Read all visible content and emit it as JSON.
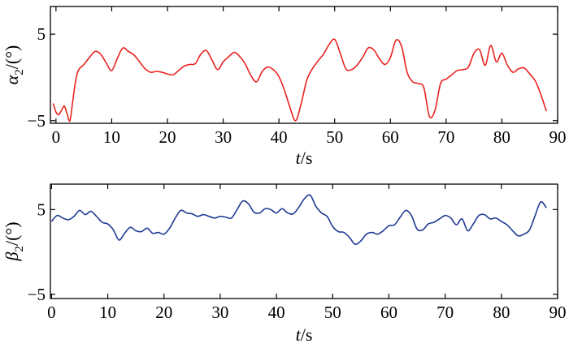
{
  "chart_data": [
    {
      "type": "line",
      "title": "",
      "xlabel": {
        "var": "t",
        "unit": "/s"
      },
      "ylabel": {
        "var": "α",
        "sub": "2",
        "unit": "/(°)"
      },
      "xlim": [
        -1,
        90
      ],
      "ylim": [
        -5.3,
        8.2
      ],
      "x_ticks": [
        0,
        10,
        20,
        30,
        40,
        50,
        60,
        70,
        80,
        90
      ],
      "y_ticks": [
        5,
        -5
      ],
      "x_tick_labels": [
        "0",
        "10",
        "20",
        "30",
        "40",
        "50",
        "60",
        "70",
        "80",
        "90"
      ],
      "y_tick_labels": [
        "5",
        "−5"
      ],
      "grid": false,
      "series": [
        {
          "color": "#e8231f",
          "x": [
            -0.5,
            0,
            0.5,
            1,
            1.5,
            2,
            2.5,
            3,
            3.5,
            4,
            5,
            6,
            7,
            8,
            9,
            10,
            11,
            12,
            13,
            14,
            15,
            16,
            17,
            18,
            19,
            20,
            21,
            22,
            23,
            24,
            25,
            26,
            27,
            28,
            29,
            30,
            31,
            32,
            33,
            34,
            35,
            36,
            37,
            38,
            39,
            40,
            41,
            42,
            43,
            44,
            45,
            46,
            47,
            48,
            49,
            50,
            51,
            52,
            53,
            54,
            55,
            56,
            57,
            58,
            59,
            60,
            61,
            62,
            63,
            64,
            65,
            66,
            67,
            68,
            69,
            70,
            71,
            72,
            73,
            74,
            75,
            76,
            77,
            78,
            79,
            80,
            81,
            82,
            83,
            84,
            85,
            86,
            87,
            88
          ],
          "y": [
            -3.0,
            -4.0,
            -4.3,
            -3.8,
            -3.3,
            -4.2,
            -5.0,
            -2.8,
            -0.5,
            0.8,
            1.5,
            2.3,
            3.0,
            2.7,
            1.7,
            0.8,
            2.2,
            3.4,
            3.0,
            2.6,
            1.8,
            1.0,
            0.6,
            0.7,
            0.6,
            0.4,
            0.3,
            0.8,
            1.3,
            1.5,
            1.6,
            2.7,
            3.1,
            2.0,
            0.9,
            1.8,
            2.4,
            2.9,
            2.4,
            1.5,
            0.2,
            -0.5,
            0.7,
            1.2,
            0.9,
            0.1,
            -1.5,
            -3.5,
            -5.0,
            -3.0,
            -0.3,
            1.0,
            1.9,
            2.7,
            3.8,
            4.4,
            2.8,
            1.0,
            0.9,
            1.4,
            2.3,
            3.4,
            3.2,
            2.2,
            1.5,
            2.3,
            4.3,
            3.6,
            0.6,
            -0.5,
            -0.7,
            -1.2,
            -4.5,
            -3.8,
            -0.7,
            -0.2,
            0.3,
            0.8,
            0.9,
            1.2,
            2.8,
            3.2,
            1.4,
            3.7,
            1.8,
            2.8,
            1.4,
            0.6,
            1.0,
            1.1,
            0.4,
            -0.4,
            -2.0,
            -3.9
          ]
        }
      ]
    },
    {
      "type": "line",
      "title": "",
      "xlabel": {
        "var": "t",
        "unit": "/s"
      },
      "ylabel": {
        "var": "β",
        "sub": "2",
        "unit": "/(°)"
      },
      "xlim": [
        -0.2,
        90
      ],
      "ylim": [
        -5.5,
        8.0
      ],
      "x_ticks": [
        0,
        10,
        20,
        30,
        40,
        50,
        60,
        70,
        80,
        90
      ],
      "y_ticks": [
        5,
        -5
      ],
      "x_tick_labels": [
        "0",
        "10",
        "20",
        "30",
        "40",
        "50",
        "60",
        "70",
        "80",
        "90"
      ],
      "y_tick_labels": [
        "5",
        "−5"
      ],
      "grid": false,
      "series": [
        {
          "color": "#1f3a93",
          "x": [
            0,
            1,
            2,
            3,
            4,
            5,
            6,
            7,
            8,
            9,
            10,
            11,
            12,
            13,
            14,
            15,
            16,
            17,
            18,
            19,
            20,
            21,
            22,
            23,
            24,
            25,
            26,
            27,
            28,
            29,
            30,
            31,
            32,
            33,
            34,
            35,
            36,
            37,
            38,
            39,
            40,
            41,
            42,
            43,
            44,
            45,
            46,
            47,
            48,
            49,
            50,
            51,
            52,
            53,
            54,
            55,
            56,
            57,
            58,
            59,
            60,
            61,
            62,
            63,
            64,
            65,
            66,
            67,
            68,
            69,
            70,
            71,
            72,
            73,
            74,
            75,
            76,
            77,
            78,
            79,
            80,
            81,
            82,
            83,
            84,
            85,
            86,
            87,
            88
          ],
          "y": [
            3.6,
            4.3,
            4.0,
            3.8,
            4.2,
            4.9,
            4.4,
            4.8,
            4.2,
            3.5,
            3.3,
            2.6,
            1.4,
            2.2,
            2.9,
            2.5,
            2.4,
            2.8,
            2.2,
            2.3,
            2.1,
            2.8,
            4.0,
            4.9,
            4.6,
            4.5,
            4.2,
            4.4,
            4.2,
            4.0,
            4.2,
            4.1,
            4.0,
            5.0,
            6.0,
            5.7,
            4.7,
            4.6,
            5.1,
            5.0,
            4.6,
            5.1,
            4.6,
            4.5,
            5.3,
            6.3,
            6.7,
            5.4,
            4.6,
            4.2,
            3.0,
            2.4,
            2.3,
            1.7,
            0.9,
            1.3,
            2.1,
            2.3,
            2.1,
            2.5,
            3.1,
            3.2,
            4.1,
            4.9,
            4.3,
            2.7,
            2.6,
            3.3,
            3.5,
            3.9,
            4.3,
            4.0,
            3.2,
            3.9,
            2.5,
            3.3,
            4.3,
            4.4,
            3.9,
            4.0,
            3.6,
            3.2,
            2.5,
            1.9,
            2.1,
            2.6,
            4.3,
            5.9,
            5.2
          ]
        }
      ]
    }
  ]
}
